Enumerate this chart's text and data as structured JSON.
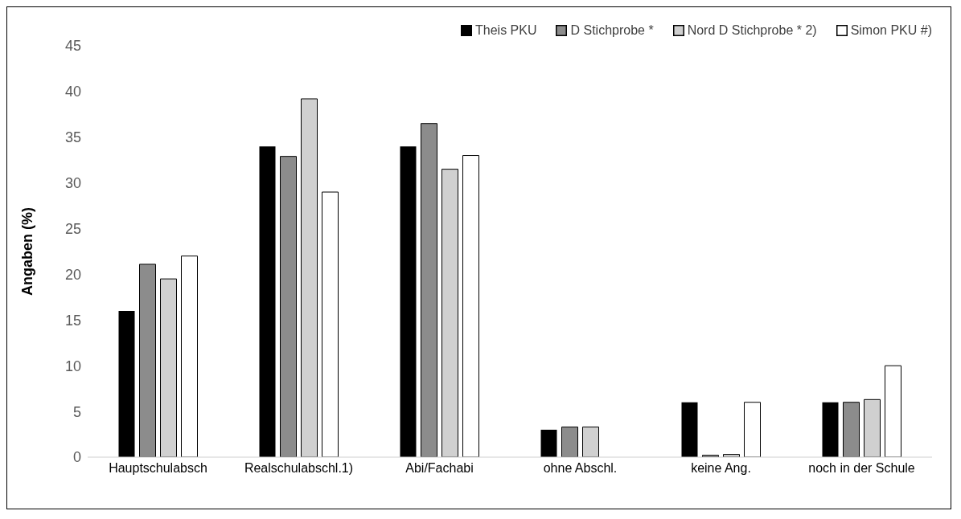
{
  "chart_data": {
    "type": "bar",
    "ylabel": "Angaben  (%)",
    "categories": [
      "Hauptschulabsch",
      "Realschulabschl.1)",
      "Abi/Fachabi",
      "ohne Abschl.",
      "keine Ang.",
      "noch in der Schule"
    ],
    "series": [
      {
        "name": "Theis PKU",
        "color": "#000000",
        "values": [
          16,
          34,
          34,
          3,
          6,
          6
        ]
      },
      {
        "name": "D Stichprobe *",
        "color": "#8c8c8c",
        "values": [
          21.1,
          32.9,
          36.5,
          3.3,
          0.2,
          6
        ]
      },
      {
        "name": "Nord D Stichprobe * 2)",
        "color": "#d0d0d0",
        "values": [
          19.5,
          39.2,
          31.5,
          3.3,
          0.3,
          6.3
        ]
      },
      {
        "name": "Simon PKU #)",
        "color": "#ffffff",
        "values": [
          22,
          29,
          33,
          null,
          6,
          10
        ]
      }
    ],
    "ylim": [
      0,
      45
    ],
    "yticks": [
      0,
      5,
      10,
      15,
      20,
      25,
      30,
      35,
      40,
      45
    ],
    "grid": false,
    "legend": "top right"
  }
}
